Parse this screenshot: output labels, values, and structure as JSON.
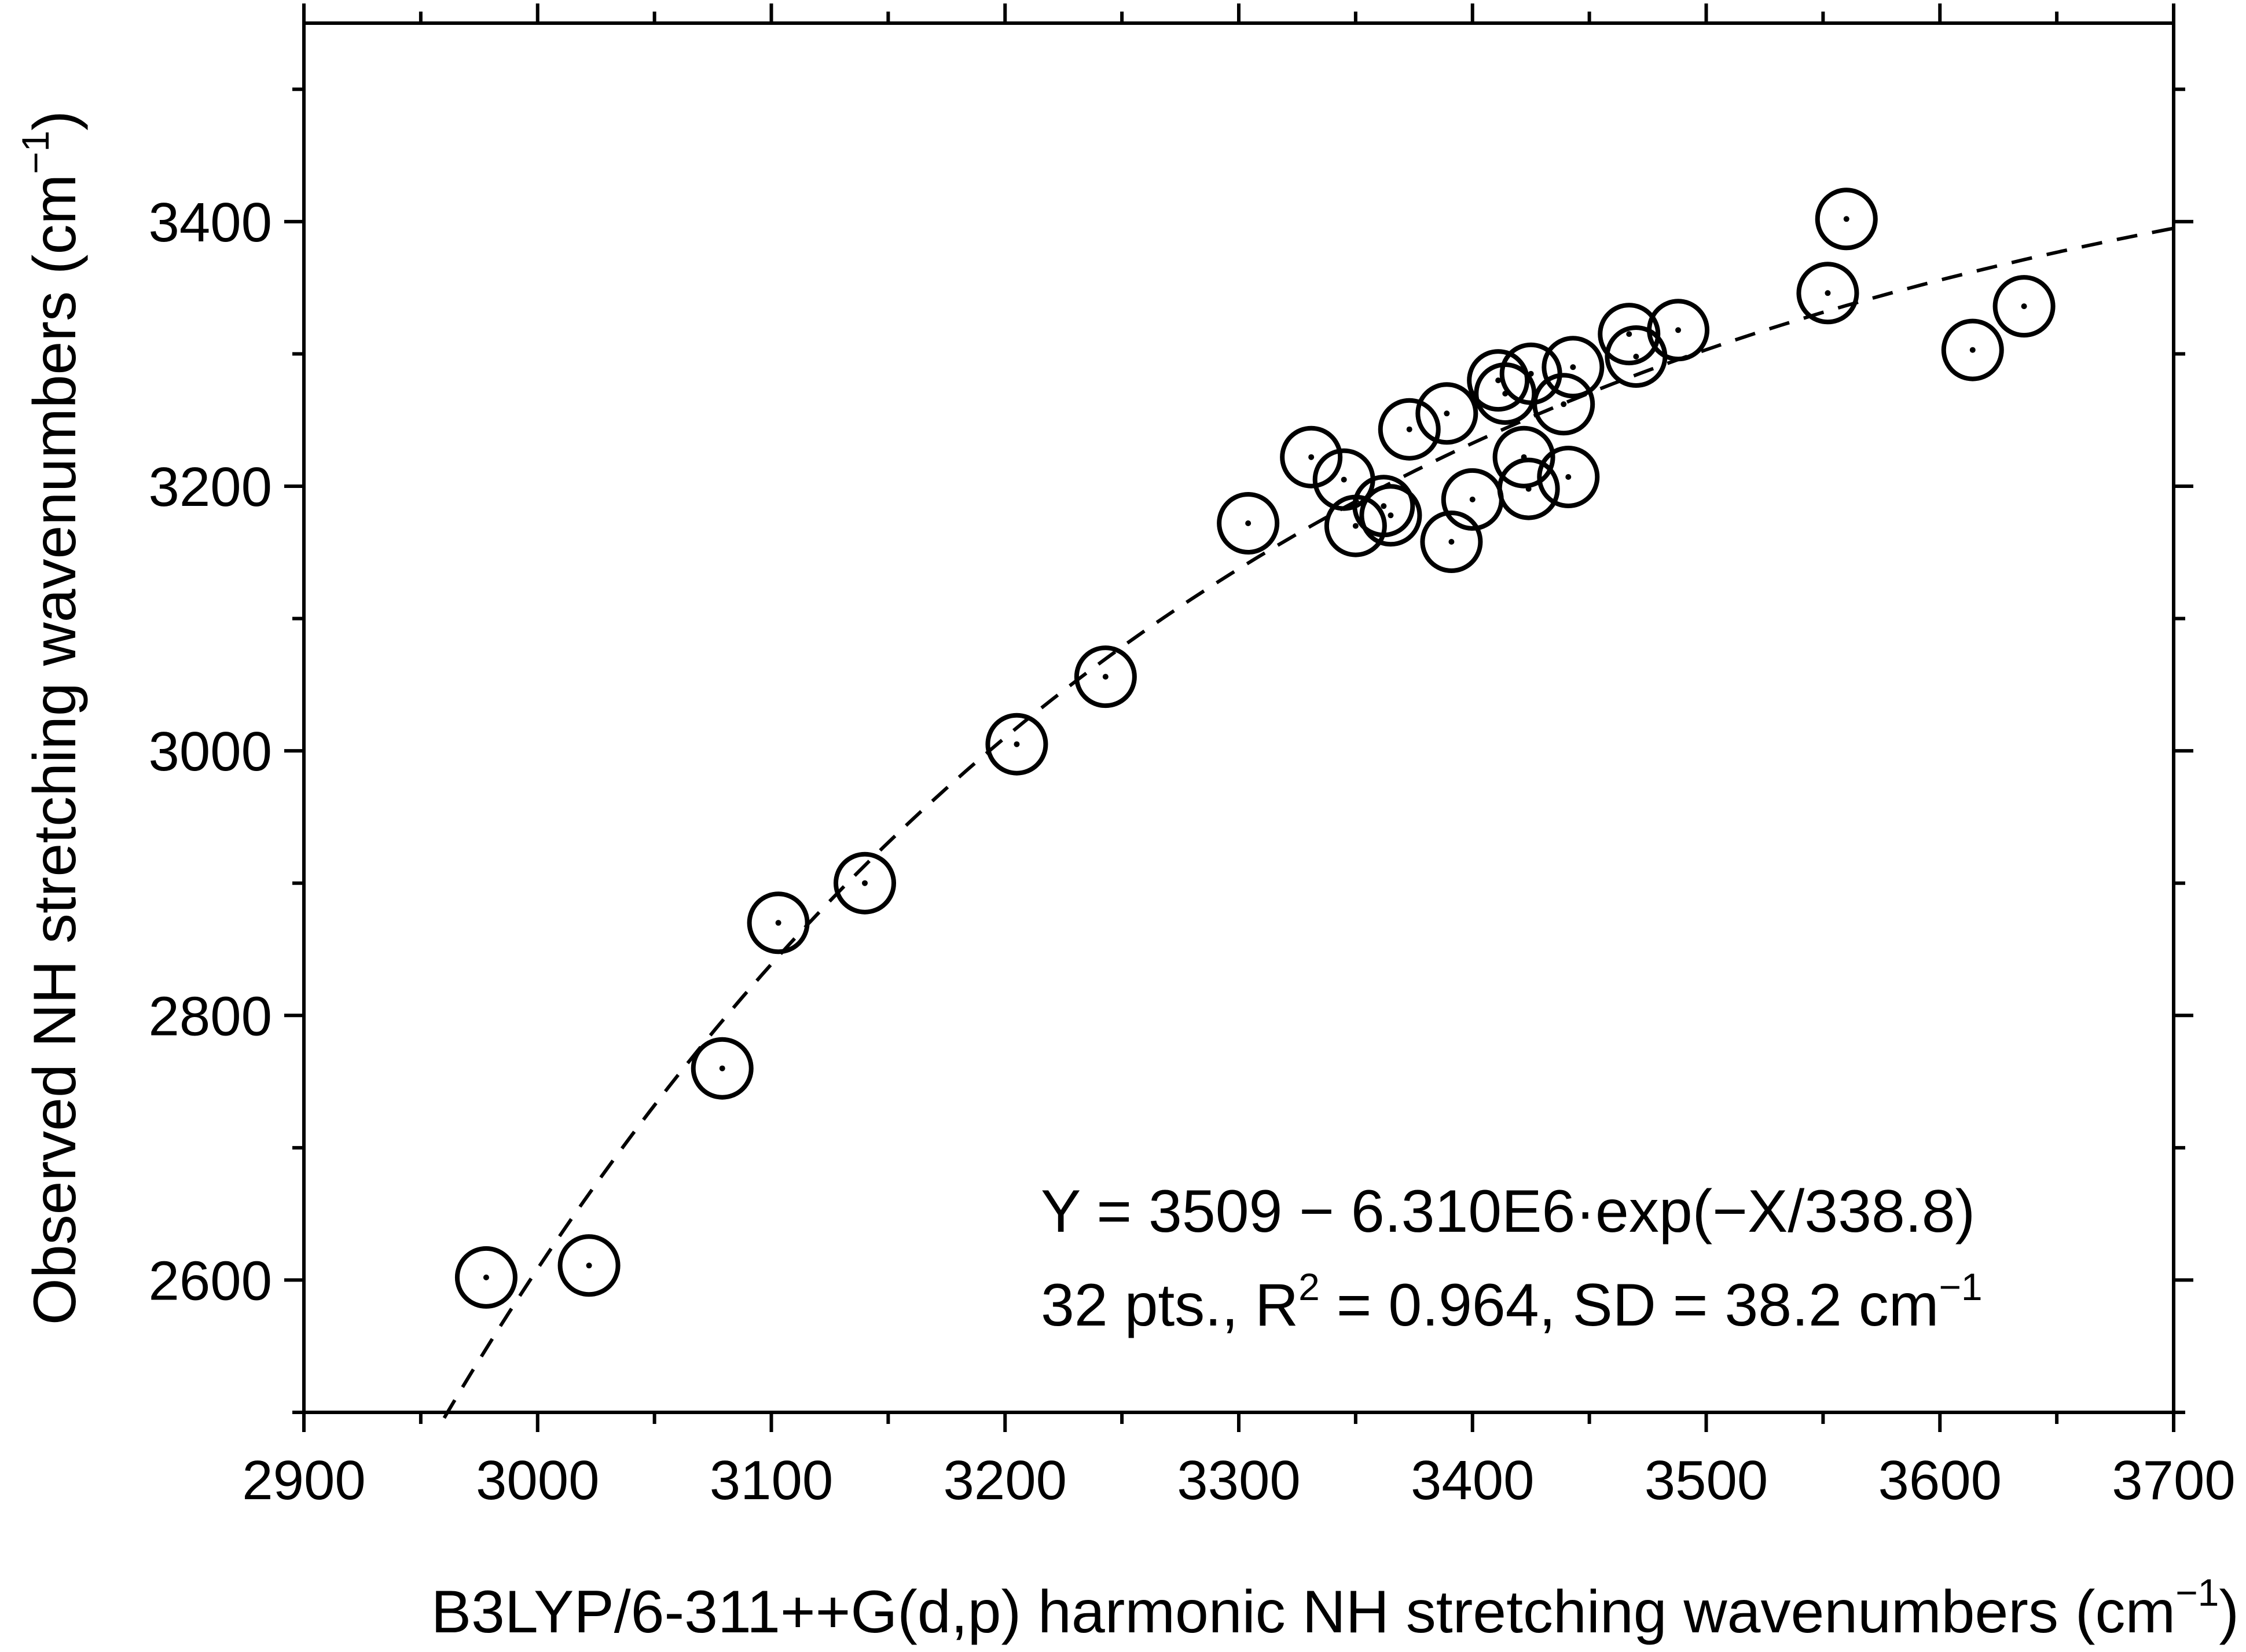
{
  "chart_data": {
    "type": "scatter",
    "xlabel": "B3LYP/6-311++G(d,p) harmonic NH stretching wavenumbers (cm",
    "xlabel_unit_exp": "−1",
    "xlabel_close": ")",
    "ylabel": "Observed NH stretching wavenumbers (cm",
    "ylabel_unit_exp": "−1",
    "ylabel_close": ")",
    "xlim": [
      2900,
      3700
    ],
    "ylim": [
      2500,
      3550
    ],
    "xticks": [
      2900,
      3000,
      3100,
      3200,
      3300,
      3400,
      3500,
      3600,
      3700
    ],
    "xtick_labels": [
      "2900",
      "3000",
      "3100",
      "3200",
      "3300",
      "3400",
      "3500",
      "3600",
      "3700"
    ],
    "yticks": [
      2600,
      2800,
      3000,
      3200,
      3400
    ],
    "ytick_labels": [
      "2600",
      "2800",
      "3000",
      "3200",
      "3400"
    ],
    "y_minor_ticks": [
      2500,
      2700,
      2900,
      3100,
      3300,
      3500
    ],
    "marker": "open-circle-with-center-dot",
    "series": [
      {
        "name": "NH stretching",
        "points": [
          [
            2978,
            2602
          ],
          [
            3022,
            2611
          ],
          [
            3079,
            2760
          ],
          [
            3103,
            2870
          ],
          [
            3140,
            2900
          ],
          [
            3205,
            3005
          ],
          [
            3243,
            3056
          ],
          [
            3304,
            3172
          ],
          [
            3331,
            3222
          ],
          [
            3345,
            3205
          ],
          [
            3350,
            3170
          ],
          [
            3362,
            3185
          ],
          [
            3365,
            3178
          ],
          [
            3373,
            3243
          ],
          [
            3389,
            3255
          ],
          [
            3391,
            3158
          ],
          [
            3400,
            3190
          ],
          [
            3411,
            3280
          ],
          [
            3414,
            3270
          ],
          [
            3422,
            3222
          ],
          [
            3424,
            3198
          ],
          [
            3425,
            3285
          ],
          [
            3439,
            3262
          ],
          [
            3441,
            3207
          ],
          [
            3443,
            3290
          ],
          [
            3467,
            3315
          ],
          [
            3470,
            3298
          ],
          [
            3488,
            3318
          ],
          [
            3552,
            3346
          ],
          [
            3560,
            3402
          ],
          [
            3614,
            3303
          ],
          [
            3636,
            3336
          ]
        ]
      }
    ],
    "fit": {
      "name": "exponential fit",
      "style": "dashed",
      "A": 3509,
      "B": 6310000,
      "C": 338.8,
      "x_range": [
        2960,
        3700
      ]
    },
    "annotation": {
      "equation": "Y = 3509 − 6.310E6·exp(−X/338.8)",
      "stats_prefix": "32 pts., R",
      "stats_exp": "2",
      "stats_middle": " = 0.964, SD = 38.2 cm",
      "stats_unit_exp": "−1"
    }
  }
}
